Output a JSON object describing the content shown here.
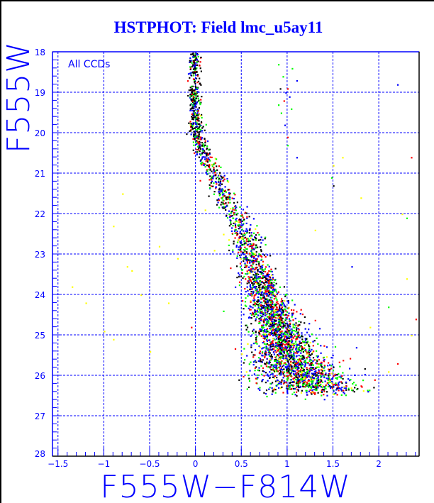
{
  "chart_data": {
    "type": "scatter",
    "title": "HSTPHOT: Field lmc_u5ay11",
    "xlabel": "F555W−F814W",
    "ylabel": "F555W",
    "annotation": "All CCDs",
    "xlim": [
      -1.56,
      2.44
    ],
    "ylim": [
      28,
      18
    ],
    "y_inverted": true,
    "grid": true,
    "xticks": [
      -1.5,
      -1,
      -0.5,
      0,
      0.5,
      1,
      1.5,
      2
    ],
    "xtick_labels": [
      "−1.5",
      "−1",
      "−0.5",
      "0",
      "0.5",
      "1",
      "1.5",
      "2"
    ],
    "yticks": [
      18,
      19,
      20,
      21,
      22,
      23,
      24,
      25,
      26,
      27,
      28
    ],
    "ytick_labels": [
      "18",
      "19",
      "20",
      "21",
      "22",
      "23",
      "24",
      "25",
      "26",
      "27",
      "28"
    ],
    "series_colors": {
      "black": "#000000",
      "blue": "#0000ff",
      "red": "#ff0000",
      "green": "#00ff00",
      "yellow": "#ffff00"
    },
    "main_sequence": {
      "count": 3400,
      "ridge": [
        [
          18.0,
          -0.01,
          0.03
        ],
        [
          19.0,
          -0.02,
          0.035
        ],
        [
          20.0,
          0.0,
          0.04
        ],
        [
          20.5,
          0.08,
          0.05
        ],
        [
          21.0,
          0.2,
          0.06
        ],
        [
          21.5,
          0.3,
          0.07
        ],
        [
          22.0,
          0.42,
          0.08
        ],
        [
          22.5,
          0.52,
          0.08
        ],
        [
          23.0,
          0.6,
          0.09
        ],
        [
          23.5,
          0.67,
          0.1
        ],
        [
          24.0,
          0.75,
          0.11
        ],
        [
          24.5,
          0.83,
          0.13
        ],
        [
          25.0,
          0.92,
          0.15
        ],
        [
          25.5,
          1.0,
          0.2
        ],
        [
          26.0,
          1.15,
          0.25
        ],
        [
          26.4,
          1.3,
          0.25
        ]
      ],
      "color_weights": {
        "black": 0.22,
        "blue": 0.3,
        "red": 0.2,
        "green": 0.24,
        "yellow": 0.04
      }
    },
    "field_points": [
      [
        -0.8,
        21.5,
        "yellow"
      ],
      [
        -0.9,
        22.3,
        "yellow"
      ],
      [
        -0.75,
        23.3,
        "yellow"
      ],
      [
        -0.7,
        23.4,
        "yellow"
      ],
      [
        -1.35,
        23.8,
        "yellow"
      ],
      [
        -1.2,
        24.2,
        "yellow"
      ],
      [
        -0.6,
        24.0,
        "yellow"
      ],
      [
        -0.3,
        24.2,
        "yellow"
      ],
      [
        -0.9,
        25.1,
        "yellow"
      ],
      [
        -0.5,
        25.4,
        "yellow"
      ],
      [
        -1.0,
        24.9,
        "yellow"
      ],
      [
        -0.4,
        22.8,
        "yellow"
      ],
      [
        0.3,
        22.5,
        "yellow"
      ],
      [
        0.2,
        22.9,
        "yellow"
      ],
      [
        -0.2,
        23.1,
        "yellow"
      ],
      [
        1.3,
        22.4,
        "yellow"
      ],
      [
        1.8,
        21.6,
        "yellow"
      ],
      [
        2.3,
        22.1,
        "green"
      ],
      [
        0.1,
        21.9,
        "yellow"
      ],
      [
        0.35,
        21.2,
        "yellow"
      ],
      [
        0.9,
        18.3,
        "green"
      ],
      [
        0.95,
        18.6,
        "green"
      ],
      [
        1.0,
        18.9,
        "red"
      ],
      [
        0.98,
        19.0,
        "blue"
      ],
      [
        1.02,
        19.1,
        "blue"
      ],
      [
        0.96,
        19.2,
        "red"
      ],
      [
        0.9,
        19.3,
        "green"
      ],
      [
        0.93,
        19.5,
        "green"
      ],
      [
        1.04,
        19.4,
        "green"
      ],
      [
        0.97,
        19.8,
        "blue"
      ],
      [
        1.0,
        20.1,
        "red"
      ],
      [
        1.05,
        18.4,
        "green"
      ],
      [
        1.1,
        18.7,
        "blue"
      ],
      [
        0.92,
        18.9,
        "black"
      ],
      [
        1.0,
        20.3,
        "green"
      ],
      [
        1.1,
        20.6,
        "blue"
      ],
      [
        2.2,
        18.8,
        "blue"
      ],
      [
        2.35,
        20.6,
        "red"
      ],
      [
        1.5,
        20.8,
        "yellow"
      ],
      [
        1.6,
        20.6,
        "yellow"
      ],
      [
        1.48,
        21.1,
        "green"
      ],
      [
        1.5,
        21.3,
        "black"
      ],
      [
        2.35,
        25.0,
        "yellow"
      ],
      [
        2.2,
        25.7,
        "red"
      ],
      [
        2.1,
        24.3,
        "green"
      ],
      [
        1.9,
        24.8,
        "yellow"
      ],
      [
        2.3,
        23.6,
        "yellow"
      ],
      [
        1.7,
        23.3,
        "blue"
      ],
      [
        0.55,
        25.9,
        "yellow"
      ],
      [
        -0.05,
        24.8,
        "red"
      ],
      [
        0.3,
        24.4,
        "green"
      ],
      [
        1.95,
        26.1,
        "red"
      ],
      [
        2.1,
        25.9,
        "yellow"
      ],
      [
        1.75,
        25.3,
        "blue"
      ],
      [
        2.4,
        24.6,
        "red"
      ],
      [
        2.25,
        22.0,
        "yellow"
      ]
    ]
  }
}
